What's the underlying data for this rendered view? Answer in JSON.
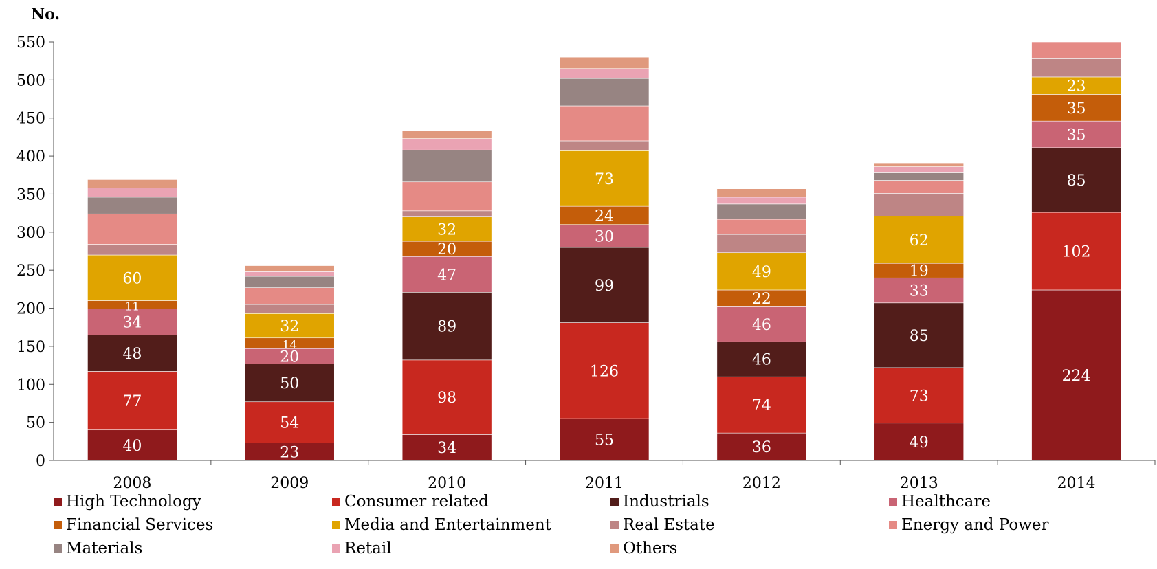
{
  "chart_data": {
    "type": "bar",
    "stacked": true,
    "ylabel": "No.",
    "ylim": [
      0,
      550
    ],
    "yticks": [
      0,
      50,
      100,
      150,
      200,
      250,
      300,
      350,
      400,
      450,
      500,
      550
    ],
    "categories": [
      "2008",
      "2009",
      "2010",
      "2011",
      "2012",
      "2013",
      "2014"
    ],
    "series": [
      {
        "name": "High Technology",
        "color": "#8f1a1c",
        "values": [
          40,
          23,
          34,
          55,
          36,
          49,
          224
        ],
        "labels": [
          "40",
          "23",
          "34",
          "55",
          "36",
          "49",
          "224"
        ]
      },
      {
        "name": "Consumer related",
        "color": "#c8281f",
        "values": [
          77,
          54,
          98,
          126,
          74,
          73,
          102
        ],
        "labels": [
          "77",
          "54",
          "98",
          "126",
          "74",
          "73",
          "102"
        ]
      },
      {
        "name": "Industrials",
        "color": "#521d1a",
        "values": [
          48,
          50,
          89,
          99,
          46,
          85,
          85
        ],
        "labels": [
          "48",
          "50",
          "89",
          "99",
          "46",
          "85",
          "85"
        ]
      },
      {
        "name": "Healthcare",
        "color": "#c96474",
        "values": [
          34,
          20,
          47,
          30,
          46,
          33,
          35
        ],
        "labels": [
          "34",
          "20",
          "47",
          "30",
          "46",
          "33",
          "35"
        ]
      },
      {
        "name": "Financial Services",
        "color": "#c45d0a",
        "values": [
          11,
          14,
          20,
          24,
          22,
          19,
          35
        ],
        "labels": [
          "11",
          "14",
          "20",
          "24",
          "22",
          "19",
          "35"
        ]
      },
      {
        "name": "Media and Entertainment",
        "color": "#e0a400",
        "values": [
          60,
          32,
          32,
          73,
          49,
          62,
          23
        ],
        "labels": [
          "60",
          "32",
          "32",
          "73",
          "49",
          "62",
          "23"
        ]
      },
      {
        "name": "Real Estate",
        "color": "#be8585",
        "values": [
          14,
          12,
          8,
          13,
          24,
          30,
          24
        ],
        "labels": [
          "",
          "",
          "",
          "",
          "",
          "",
          ""
        ]
      },
      {
        "name": "Energy and Power",
        "color": "#e58a85",
        "values": [
          40,
          22,
          38,
          46,
          20,
          17,
          22
        ],
        "labels": [
          "",
          "",
          "",
          "",
          "",
          "",
          ""
        ]
      },
      {
        "name": "Materials",
        "color": "#978482",
        "values": [
          22,
          15,
          42,
          36,
          20,
          10,
          0
        ],
        "labels": [
          "",
          "",
          "",
          "",
          "",
          "",
          ""
        ]
      },
      {
        "name": "Retail",
        "color": "#eaa3b3",
        "values": [
          12,
          6,
          15,
          13,
          9,
          8,
          0
        ],
        "labels": [
          "",
          "",
          "",
          "",
          "",
          "",
          ""
        ]
      },
      {
        "name": "Others",
        "color": "#e0997d",
        "values": [
          11,
          8,
          10,
          15,
          11,
          5,
          0
        ],
        "labels": [
          "",
          "",
          "",
          "",
          "",
          "",
          ""
        ]
      }
    ]
  }
}
